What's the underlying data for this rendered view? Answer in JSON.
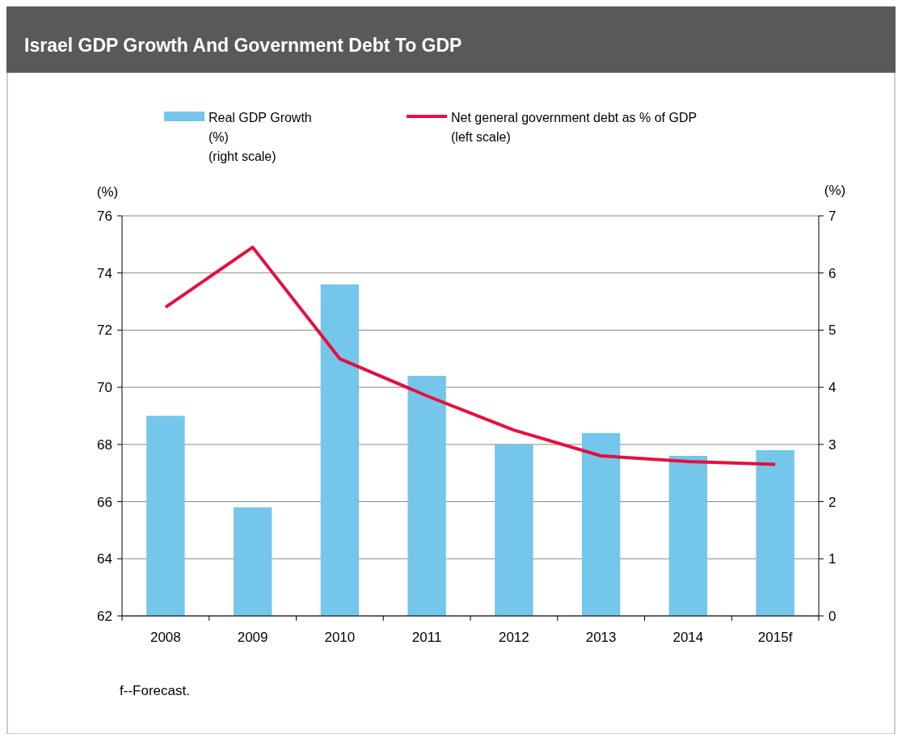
{
  "chart_data": {
    "type": "bar",
    "title": "Israel GDP Growth And Government Debt To GDP",
    "ylabel": "(%)",
    "y2label": "(%)",
    "categories": [
      "2008",
      "2009",
      "2010",
      "2011",
      "2012",
      "2013",
      "2014",
      "2015f"
    ],
    "series": [
      {
        "name": "Real GDP Growth (%) (right scale)",
        "axis": "y2",
        "color": "#74c6ea",
        "values": [
          3.5,
          1.9,
          5.8,
          4.2,
          3.0,
          3.2,
          2.8,
          2.9
        ]
      },
      {
        "name": "Net general government debt as % of GDP (left scale)",
        "type": "line",
        "color": "#e4103f",
        "values": [
          72.8,
          74.9,
          71.0,
          69.7,
          68.5,
          67.6,
          67.4,
          67.3
        ]
      }
    ],
    "ylim": [
      62,
      76
    ],
    "yticks": [
      62,
      64,
      66,
      68,
      70,
      72,
      74,
      76
    ],
    "y2lim": [
      0,
      7
    ],
    "y2ticks": [
      0,
      1,
      2,
      3,
      4,
      5,
      6,
      7
    ],
    "grid": "y",
    "legend": "top",
    "annotations": [
      "f--Forecast."
    ]
  }
}
